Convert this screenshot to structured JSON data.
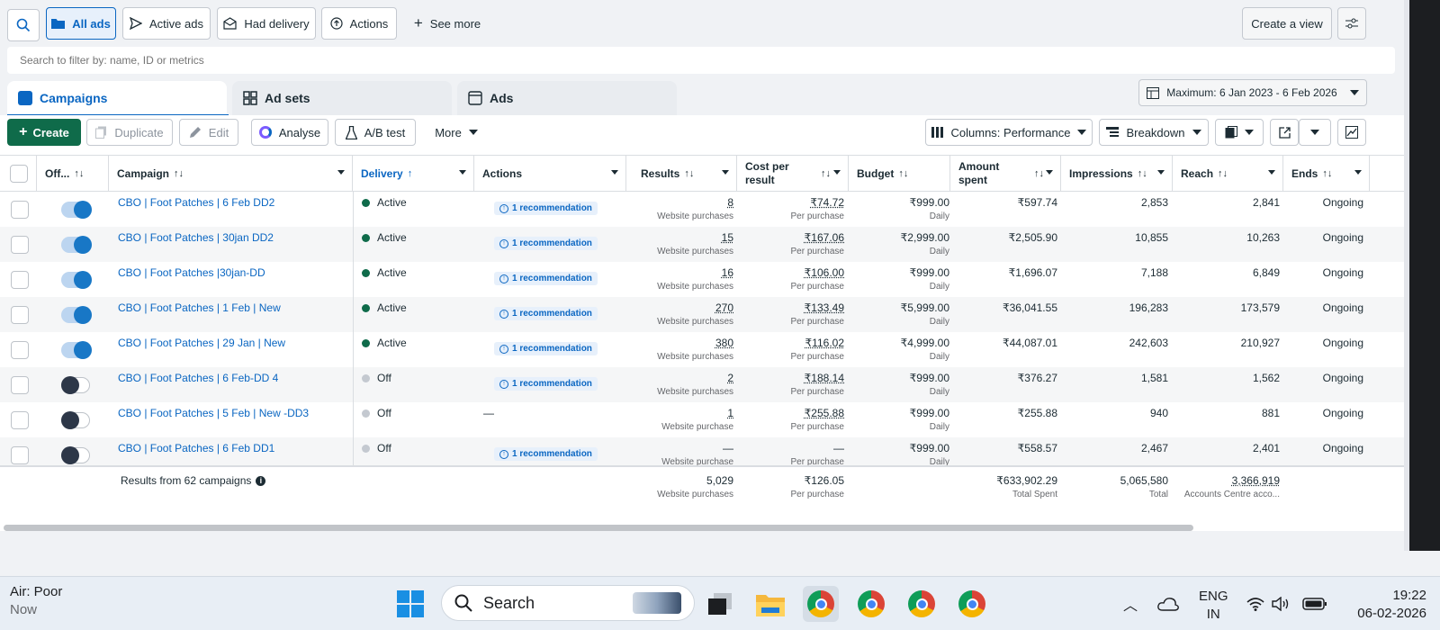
{
  "topbar": {
    "all_ads": "All ads",
    "active_ads": "Active ads",
    "had_delivery": "Had delivery",
    "actions": "Actions",
    "see_more": "See more",
    "create_view": "Create a view"
  },
  "search": {
    "placeholder": "Search to filter by: name, ID or metrics"
  },
  "tabs": {
    "campaigns": "Campaigns",
    "ad_sets": "Ad sets",
    "ads": "Ads"
  },
  "date_range": "Maximum: 6 Jan 2023 - 6 Feb 2026",
  "toolbar": {
    "create": "Create",
    "duplicate": "Duplicate",
    "edit": "Edit",
    "analyse": "Analyse",
    "ab_test": "A/B test",
    "more": "More",
    "columns": "Columns: Performance",
    "breakdown": "Breakdown"
  },
  "headers": {
    "offon": "Off...",
    "campaign": "Campaign",
    "delivery": "Delivery",
    "actions": "Actions",
    "results": "Results",
    "cpr1": "Cost per",
    "cpr2": "result",
    "budget": "Budget",
    "amount1": "Amount",
    "amount2": "spent",
    "impressions": "Impressions",
    "reach": "Reach",
    "ends": "Ends"
  },
  "rows": [
    {
      "on": true,
      "name": "CBO | Foot Patches | 6 Feb DD2",
      "delivery": "Active",
      "rec": "1 recommendation",
      "results": "8",
      "results_sub": "Website purchases",
      "cpr": "₹74.72",
      "cpr_sub": "Per purchase",
      "budget": "₹999.00",
      "budget_sub": "Daily",
      "spent": "₹597.74",
      "impressions": "2,853",
      "reach": "2,841",
      "ends": "Ongoing"
    },
    {
      "on": true,
      "name": "CBO | Foot Patches | 30jan DD2",
      "delivery": "Active",
      "rec": "1 recommendation",
      "results": "15",
      "results_sub": "Website purchases",
      "cpr": "₹167.06",
      "cpr_sub": "Per purchase",
      "budget": "₹2,999.00",
      "budget_sub": "Daily",
      "spent": "₹2,505.90",
      "impressions": "10,855",
      "reach": "10,263",
      "ends": "Ongoing"
    },
    {
      "on": true,
      "name": "CBO | Foot Patches |30jan-DD",
      "delivery": "Active",
      "rec": "1 recommendation",
      "results": "16",
      "results_sub": "Website purchases",
      "cpr": "₹106.00",
      "cpr_sub": "Per purchase",
      "budget": "₹999.00",
      "budget_sub": "Daily",
      "spent": "₹1,696.07",
      "impressions": "7,188",
      "reach": "6,849",
      "ends": "Ongoing"
    },
    {
      "on": true,
      "name": "CBO | Foot Patches | 1 Feb | New",
      "delivery": "Active",
      "rec": "1 recommendation",
      "results": "270",
      "results_sub": "Website purchases",
      "cpr": "₹133.49",
      "cpr_sub": "Per purchase",
      "budget": "₹5,999.00",
      "budget_sub": "Daily",
      "spent": "₹36,041.55",
      "impressions": "196,283",
      "reach": "173,579",
      "ends": "Ongoing"
    },
    {
      "on": true,
      "name": "CBO | Foot Patches | 29 Jan | New",
      "delivery": "Active",
      "rec": "1 recommendation",
      "results": "380",
      "results_sub": "Website purchases",
      "cpr": "₹116.02",
      "cpr_sub": "Per purchase",
      "budget": "₹4,999.00",
      "budget_sub": "Daily",
      "spent": "₹44,087.01",
      "impressions": "242,603",
      "reach": "210,927",
      "ends": "Ongoing"
    },
    {
      "on": false,
      "name": "CBO | Foot Patches | 6 Feb-DD 4",
      "delivery": "Off",
      "rec": "1 recommendation",
      "results": "2",
      "results_sub": "Website purchases",
      "cpr": "₹188.14",
      "cpr_sub": "Per purchase",
      "budget": "₹999.00",
      "budget_sub": "Daily",
      "spent": "₹376.27",
      "impressions": "1,581",
      "reach": "1,562",
      "ends": "Ongoing"
    },
    {
      "on": false,
      "name": "CBO | Foot Patches | 5 Feb | New -DD3",
      "delivery": "Off",
      "rec": "",
      "actions_text": "—",
      "results": "1",
      "results_sub": "Website purchase",
      "cpr": "₹255.88",
      "cpr_sub": "Per purchase",
      "budget": "₹999.00",
      "budget_sub": "Daily",
      "spent": "₹255.88",
      "impressions": "940",
      "reach": "881",
      "ends": "Ongoing"
    },
    {
      "on": false,
      "name": "CBO | Foot Patches | 6 Feb DD1",
      "delivery": "Off",
      "rec": "1 recommendation",
      "results": "—",
      "results_sub": "Website purchase",
      "cpr": "—",
      "cpr_sub": "Per purchase",
      "budget": "₹999.00",
      "budget_sub": "Daily",
      "spent": "₹558.57",
      "impressions": "2,467",
      "reach": "2,401",
      "ends": "Ongoing"
    }
  ],
  "footer": {
    "label": "Results from 62 campaigns",
    "results": "5,029",
    "results_sub": "Website purchases",
    "cpr": "₹126.05",
    "cpr_sub": "Per purchase",
    "spent": "₹633,902.29",
    "spent_sub": "Total Spent",
    "impressions": "5,065,580",
    "impressions_sub": "Total",
    "reach": "3,366,919",
    "reach_sub": "Accounts Centre acco..."
  },
  "taskbar": {
    "air": "Air: Poor",
    "now": "Now",
    "search": "Search",
    "lang1": "ENG",
    "lang2": "IN",
    "time": "19:22",
    "date": "06-02-2026"
  },
  "colors": {
    "accent": "#0a66c2",
    "create": "#0f6b4a",
    "active_dot": "#0f6b4a",
    "off_dot": "#c4c9d0"
  }
}
